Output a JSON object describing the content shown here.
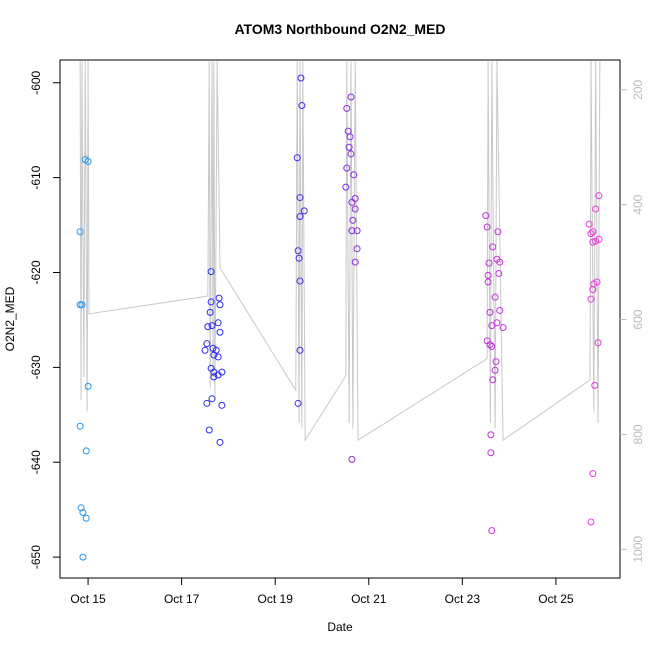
{
  "chart_data": {
    "type": "scatter",
    "title": "ATOM3 Northbound O2N2_MED",
    "x_label": "Date",
    "y_label": "O2N2_MED",
    "xlim": [
      14.4,
      26.37
    ],
    "xticks": [
      {
        "value": 15,
        "label": "Oct 15"
      },
      {
        "value": 17,
        "label": "Oct 17"
      },
      {
        "value": 19,
        "label": "Oct 19"
      },
      {
        "value": 21,
        "label": "Oct 21"
      },
      {
        "value": 23,
        "label": "Oct 23"
      },
      {
        "value": 25,
        "label": "Oct 25"
      }
    ],
    "ylim": [
      -652.2,
      -597.6
    ],
    "yticks": [
      -650,
      -640,
      -630,
      -620,
      -610,
      -600
    ],
    "y2lim": [
      1050,
      148
    ],
    "y2ticks": [
      200,
      400,
      600,
      800,
      1000
    ],
    "y2_color": "#bbbbbb",
    "series": [
      {
        "kind": "line",
        "axis": "y2",
        "color": "#c8c8c8",
        "x": [
          14.83,
          14.85,
          14.87,
          14.91,
          14.94,
          14.98,
          15.0,
          15.02,
          17.56,
          17.59,
          17.61,
          17.65,
          17.67,
          17.69,
          17.71,
          17.76,
          17.82,
          19.44,
          19.47,
          19.51,
          19.53,
          19.57,
          19.59,
          19.64,
          20.51,
          20.53,
          20.58,
          20.62,
          20.66,
          20.71,
          20.77,
          23.53,
          23.55,
          23.6,
          23.63,
          23.7,
          23.74,
          23.87,
          25.73,
          25.75,
          25.81,
          25.85,
          25.9,
          25.94
        ],
        "values": [
          150,
          740,
          150,
          700,
          150,
          760,
          150,
          590,
          559,
          150,
          720,
          150,
          700,
          150,
          740,
          150,
          510,
          723,
          150,
          780,
          150,
          790,
          150,
          810,
          698,
          150,
          780,
          150,
          790,
          150,
          810,
          668,
          150,
          780,
          150,
          790,
          150,
          810,
          705,
          150,
          760,
          150,
          780,
          150
        ]
      },
      {
        "color": "#2196f3",
        "x": [
          14.83,
          14.83,
          14.87,
          14.94,
          15.0,
          15.0,
          14.83,
          14.96,
          14.85,
          14.89,
          14.96,
          14.89
        ],
        "values": [
          -615.7,
          -623.4,
          -623.4,
          -608.1,
          -608.3,
          -632.0,
          -636.2,
          -638.8,
          -644.8,
          -645.3,
          -645.9,
          -650.0
        ]
      },
      {
        "color": "#2a2cf0",
        "x": [
          17.63,
          17.63,
          17.8,
          17.82,
          17.61,
          17.78,
          17.56,
          17.65,
          17.82,
          17.54,
          17.67,
          17.5,
          17.74,
          17.69,
          17.78,
          17.63,
          17.69,
          17.86,
          17.69,
          17.78,
          17.65,
          17.54,
          17.86,
          17.59,
          17.82
        ],
        "values": [
          -619.9,
          -623.1,
          -622.7,
          -623.4,
          -624.2,
          -625.3,
          -625.7,
          -625.6,
          -626.3,
          -627.5,
          -628.0,
          -628.2,
          -628.2,
          -628.7,
          -628.9,
          -630.1,
          -630.5,
          -630.5,
          -631.0,
          -630.8,
          -633.3,
          -633.8,
          -634.0,
          -636.6,
          -637.9
        ]
      },
      {
        "color": "#4b28e6",
        "x": [
          19.55,
          19.57,
          19.47,
          19.53,
          19.62,
          19.53,
          19.49,
          19.51,
          19.53,
          19.53,
          19.49
        ],
        "values": [
          -599.5,
          -602.4,
          -607.9,
          -612.1,
          -613.5,
          -614.1,
          -617.7,
          -618.5,
          -620.9,
          -628.2,
          -633.8
        ]
      },
      {
        "color": "#8a2be2",
        "x": [
          20.62,
          20.53,
          20.56,
          20.6,
          20.58,
          20.62,
          20.53,
          20.68,
          20.51,
          20.71,
          20.64,
          20.71,
          20.66,
          20.75,
          20.64,
          20.75,
          20.71,
          20.64
        ],
        "values": [
          -601.5,
          -602.7,
          -605.1,
          -605.7,
          -606.8,
          -607.5,
          -609.0,
          -609.7,
          -611.0,
          -612.2,
          -612.6,
          -613.3,
          -614.5,
          -615.6,
          -615.6,
          -617.5,
          -618.9,
          -639.7
        ]
      },
      {
        "color": "#c62fe0",
        "x": [
          23.5,
          23.53,
          23.57,
          23.65,
          23.76,
          23.74,
          23.8,
          23.55,
          23.78,
          23.55,
          23.7,
          23.59,
          23.8,
          23.74,
          23.63,
          23.87,
          23.53,
          23.59,
          23.63,
          23.72,
          23.7,
          23.65,
          23.61,
          23.61,
          23.63
        ],
        "values": [
          -614.0,
          -615.2,
          -619.0,
          -617.3,
          -615.7,
          -618.6,
          -618.9,
          -620.3,
          -620.1,
          -621.0,
          -622.6,
          -624.2,
          -624.0,
          -625.3,
          -625.6,
          -625.8,
          -627.2,
          -627.6,
          -627.8,
          -629.4,
          -630.3,
          -631.3,
          -637.1,
          -639.0,
          -647.2
        ]
      },
      {
        "color": "#e83adf",
        "x": [
          25.71,
          25.79,
          25.75,
          25.92,
          25.85,
          25.92,
          25.85,
          25.79,
          25.88,
          25.81,
          25.79,
          25.75,
          25.9,
          25.83,
          25.79,
          25.75
        ],
        "values": [
          -614.9,
          -615.7,
          -615.9,
          -611.9,
          -613.3,
          -616.5,
          -616.7,
          -616.8,
          -621.0,
          -621.2,
          -621.8,
          -622.8,
          -627.4,
          -631.9,
          -641.2,
          -646.3
        ]
      }
    ]
  }
}
